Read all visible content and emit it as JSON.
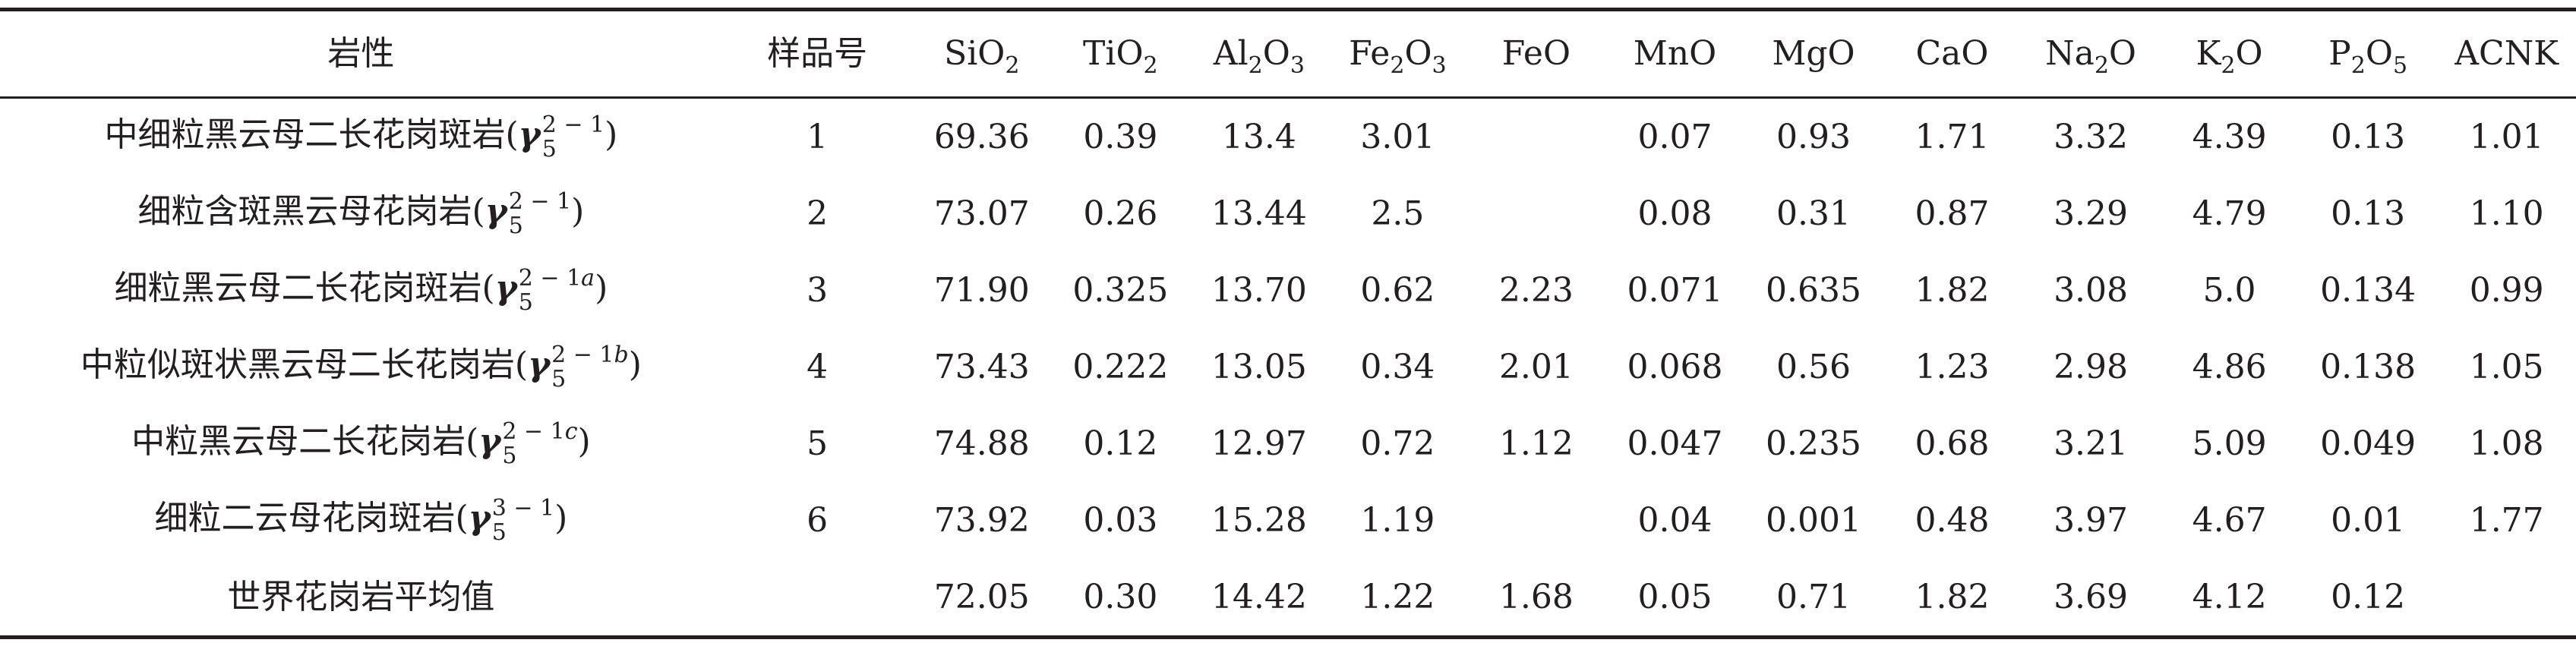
{
  "table": {
    "header": {
      "rock": "岩性",
      "sample": "样品号",
      "oxides": [
        {
          "base": "SiO",
          "sub": "2",
          "tail": ""
        },
        {
          "base": "TiO",
          "sub": "2",
          "tail": ""
        },
        {
          "base": "Al",
          "sub": "2",
          "tail": "O",
          "sub2": "3"
        },
        {
          "base": "Fe",
          "sub": "2",
          "tail": "O",
          "sub2": "3"
        },
        {
          "base": "FeO",
          "sub": "",
          "tail": ""
        },
        {
          "base": "MnO",
          "sub": "",
          "tail": ""
        },
        {
          "base": "MgO",
          "sub": "",
          "tail": ""
        },
        {
          "base": "CaO",
          "sub": "",
          "tail": ""
        },
        {
          "base": "Na",
          "sub": "2",
          "tail": "O"
        },
        {
          "base": "K",
          "sub": "2",
          "tail": "O"
        },
        {
          "base": "P",
          "sub": "2",
          "tail": "O",
          "sub2": "5"
        },
        {
          "base": "ACNK",
          "sub": "",
          "tail": ""
        }
      ]
    },
    "rows": [
      {
        "rock": "中细粒黑云母二长花岗斑岩(",
        "symbol": {
          "letter": "γ",
          "sup": "2 − 1",
          "sup_italic": "",
          "sub": "5"
        },
        "close": ")",
        "sample": "1",
        "values": [
          "69.36",
          "0.39",
          "13.4",
          "3.01",
          "",
          "0.07",
          "0.93",
          "1.71",
          "3.32",
          "4.39",
          "0.13",
          "1.01"
        ]
      },
      {
        "rock": "细粒含斑黑云母花岗岩(",
        "symbol": {
          "letter": "γ",
          "sup": "2 − 1",
          "sup_italic": "",
          "sub": "5"
        },
        "close": ")",
        "sample": "2",
        "values": [
          "73.07",
          "0.26",
          "13.44",
          "2.5",
          "",
          "0.08",
          "0.31",
          "0.87",
          "3.29",
          "4.79",
          "0.13",
          "1.10"
        ]
      },
      {
        "rock": "细粒黑云母二长花岗斑岩(",
        "symbol": {
          "letter": "γ",
          "sup": "2 − 1",
          "sup_italic": "a",
          "sub": "5"
        },
        "close": ")",
        "sample": "3",
        "values": [
          "71.90",
          "0.325",
          "13.70",
          "0.62",
          "2.23",
          "0.071",
          "0.635",
          "1.82",
          "3.08",
          "5.0",
          "0.134",
          "0.99"
        ]
      },
      {
        "rock": "中粒似斑状黑云母二长花岗岩(",
        "symbol": {
          "letter": "γ",
          "sup": "2 − 1",
          "sup_italic": "b",
          "sub": "5"
        },
        "close": ")",
        "sample": "4",
        "values": [
          "73.43",
          "0.222",
          "13.05",
          "0.34",
          "2.01",
          "0.068",
          "0.56",
          "1.23",
          "2.98",
          "4.86",
          "0.138",
          "1.05"
        ]
      },
      {
        "rock": "中粒黑云母二长花岗岩(",
        "symbol": {
          "letter": "γ",
          "sup": "2 − 1",
          "sup_italic": "c",
          "sub": "5"
        },
        "close": ")",
        "sample": "5",
        "values": [
          "74.88",
          "0.12",
          "12.97",
          "0.72",
          "1.12",
          "0.047",
          "0.235",
          "0.68",
          "3.21",
          "5.09",
          "0.049",
          "1.08"
        ]
      },
      {
        "rock": "细粒二云母花岗斑岩(",
        "symbol": {
          "letter": "γ",
          "sup": "3 − 1",
          "sup_italic": "",
          "sub": "5"
        },
        "close": ")",
        "sample": "6",
        "values": [
          "73.92",
          "0.03",
          "15.28",
          "1.19",
          "",
          "0.04",
          "0.001",
          "0.48",
          "3.97",
          "4.67",
          "0.01",
          "1.77"
        ]
      },
      {
        "rock": "世界花岗岩平均值",
        "symbol": null,
        "close": "",
        "sample": "",
        "values": [
          "72.05",
          "0.30",
          "14.42",
          "1.22",
          "1.68",
          "0.05",
          "0.71",
          "1.82",
          "3.69",
          "4.12",
          "0.12",
          ""
        ]
      }
    ]
  }
}
